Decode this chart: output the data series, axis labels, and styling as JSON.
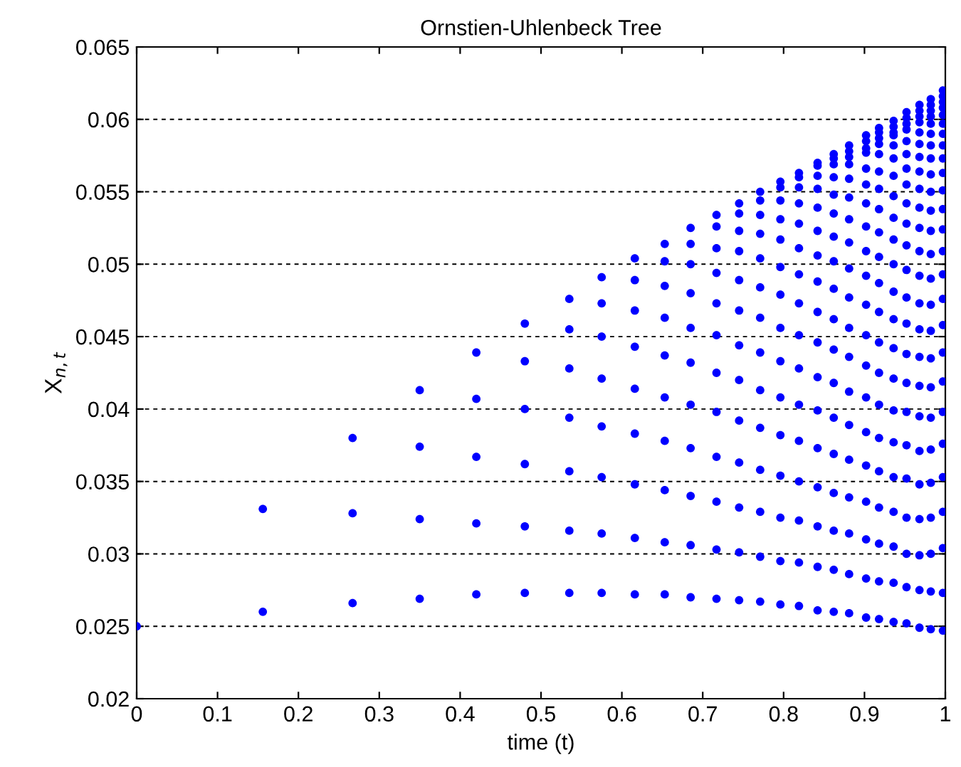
{
  "chart_data": {
    "type": "scatter",
    "title": "Ornstien-Uhlenbeck Tree",
    "xlabel": "time (t)",
    "ylabel": "X$_{n,t}$",
    "xlim": [
      0,
      1
    ],
    "ylim": [
      0.02,
      0.065
    ],
    "xticks": [
      0,
      0.1,
      0.2,
      0.3,
      0.4,
      0.5,
      0.6,
      0.7,
      0.8,
      0.9,
      1
    ],
    "yticks": [
      0.02,
      0.025,
      0.03,
      0.035,
      0.04,
      0.045,
      0.05,
      0.055,
      0.06,
      0.065
    ],
    "grid": "y",
    "marker": "circle",
    "series": [
      {
        "color": "#0000ff",
        "x": [
          0
        ],
        "values": [
          0.025
        ]
      },
      {
        "color": "#0000ff",
        "x": [
          0.156,
          0.156
        ],
        "values": [
          0.0331,
          0.026
        ]
      },
      {
        "color": "#0000ff",
        "x": [
          0.267,
          0.267,
          0.267
        ],
        "values": [
          0.038,
          0.0328,
          0.0266
        ]
      },
      {
        "color": "#0000ff",
        "x": [
          0.35,
          0.35,
          0.35,
          0.35
        ],
        "values": [
          0.0413,
          0.0374,
          0.0324,
          0.0269
        ]
      },
      {
        "color": "#0000ff",
        "x": [
          0.42,
          0.42,
          0.42,
          0.42,
          0.42
        ],
        "values": [
          0.0439,
          0.0407,
          0.0367,
          0.0321,
          0.0272
        ]
      },
      {
        "color": "#0000ff",
        "x": [
          0.48,
          0.48,
          0.48,
          0.48,
          0.48,
          0.48
        ],
        "values": [
          0.0459,
          0.0433,
          0.04,
          0.0362,
          0.0319,
          0.0273
        ]
      },
      {
        "color": "#0000ff",
        "x": [
          0.535,
          0.535,
          0.535,
          0.535,
          0.535,
          0.535,
          0.535
        ],
        "values": [
          0.0476,
          0.0455,
          0.0428,
          0.0394,
          0.0357,
          0.0316,
          0.0273
        ]
      },
      {
        "color": "#0000ff",
        "x": [
          0.575,
          0.575,
          0.575,
          0.575,
          0.575,
          0.575,
          0.575,
          0.575
        ],
        "values": [
          0.0491,
          0.0473,
          0.045,
          0.0421,
          0.0388,
          0.0353,
          0.0314,
          0.0273
        ]
      },
      {
        "color": "#0000ff",
        "x": [
          0.616,
          0.616,
          0.616,
          0.616,
          0.616,
          0.616,
          0.616,
          0.616,
          0.616
        ],
        "values": [
          0.0504,
          0.0489,
          0.0468,
          0.0443,
          0.0414,
          0.0383,
          0.0348,
          0.0311,
          0.0272
        ]
      },
      {
        "color": "#0000ff",
        "x": [
          0.653,
          0.653,
          0.653,
          0.653,
          0.653,
          0.653,
          0.653,
          0.653,
          0.653,
          0.653
        ],
        "values": [
          0.0514,
          0.0502,
          0.0485,
          0.0463,
          0.0437,
          0.0408,
          0.0378,
          0.0344,
          0.0308,
          0.0272
        ]
      },
      {
        "color": "#0000ff",
        "x": [
          0.685,
          0.685,
          0.685,
          0.685,
          0.685,
          0.685,
          0.685,
          0.685,
          0.685,
          0.685,
          0.685
        ],
        "values": [
          0.0525,
          0.0514,
          0.05,
          0.048,
          0.0456,
          0.0432,
          0.0403,
          0.0373,
          0.034,
          0.0306,
          0.027
        ]
      },
      {
        "color": "#0000ff",
        "x": [
          0.717,
          0.717,
          0.717,
          0.717,
          0.717,
          0.717,
          0.717,
          0.717,
          0.717,
          0.717,
          0.717,
          0.717
        ],
        "values": [
          0.0534,
          0.0526,
          0.0511,
          0.0494,
          0.0473,
          0.0451,
          0.0425,
          0.0398,
          0.0367,
          0.0336,
          0.0303,
          0.0269
        ]
      },
      {
        "color": "#0000ff",
        "x": [
          0.745,
          0.745,
          0.745,
          0.745,
          0.745,
          0.745,
          0.745,
          0.745,
          0.745,
          0.745,
          0.745,
          0.745,
          0.745
        ],
        "values": [
          0.0542,
          0.0535,
          0.0523,
          0.0509,
          0.0489,
          0.0468,
          0.0444,
          0.042,
          0.0392,
          0.0363,
          0.0332,
          0.0301,
          0.0268
        ]
      },
      {
        "color": "#0000ff",
        "x": [
          0.771,
          0.771,
          0.771,
          0.771,
          0.771,
          0.771,
          0.771,
          0.771,
          0.771,
          0.771,
          0.771,
          0.771,
          0.771,
          0.771
        ],
        "values": [
          0.055,
          0.0544,
          0.0534,
          0.0521,
          0.0504,
          0.0484,
          0.0463,
          0.0439,
          0.0413,
          0.0387,
          0.0358,
          0.0329,
          0.0298,
          0.0267
        ]
      },
      {
        "color": "#0000ff",
        "x": [
          0.796,
          0.796,
          0.796,
          0.796,
          0.796,
          0.796,
          0.796,
          0.796,
          0.796,
          0.796,
          0.796,
          0.796,
          0.796,
          0.796,
          0.796
        ],
        "values": [
          0.0557,
          0.0553,
          0.0544,
          0.0531,
          0.0517,
          0.0498,
          0.0479,
          0.0456,
          0.0433,
          0.0408,
          0.0382,
          0.0354,
          0.0325,
          0.0295,
          0.0265
        ]
      },
      {
        "color": "#0000ff",
        "x": [
          0.819,
          0.819,
          0.819,
          0.819,
          0.819,
          0.819,
          0.819,
          0.819,
          0.819,
          0.819,
          0.819,
          0.819,
          0.819,
          0.819,
          0.819,
          0.819
        ],
        "values": [
          0.0563,
          0.056,
          0.0553,
          0.0542,
          0.0528,
          0.0511,
          0.0493,
          0.0473,
          0.0451,
          0.0428,
          0.0403,
          0.0378,
          0.035,
          0.0323,
          0.0294,
          0.0264
        ]
      },
      {
        "color": "#0000ff",
        "x": [
          0.842,
          0.842,
          0.842,
          0.842,
          0.842,
          0.842,
          0.842,
          0.842,
          0.842,
          0.842,
          0.842,
          0.842,
          0.842,
          0.842,
          0.842,
          0.842,
          0.842
        ],
        "values": [
          0.057,
          0.0568,
          0.0561,
          0.0552,
          0.0539,
          0.0523,
          0.0506,
          0.0488,
          0.0467,
          0.0446,
          0.0422,
          0.0399,
          0.0373,
          0.0346,
          0.0319,
          0.0291,
          0.0261
        ]
      },
      {
        "color": "#0000ff",
        "x": [
          0.862,
          0.862,
          0.862,
          0.862,
          0.862,
          0.862,
          0.862,
          0.862,
          0.862,
          0.862,
          0.862,
          0.862,
          0.862,
          0.862,
          0.862,
          0.862,
          0.862,
          0.862
        ],
        "values": [
          0.0576,
          0.0573,
          0.0569,
          0.056,
          0.0548,
          0.0535,
          0.0519,
          0.0502,
          0.0483,
          0.0462,
          0.0441,
          0.0418,
          0.0394,
          0.0369,
          0.0342,
          0.0316,
          0.0289,
          0.026
        ]
      },
      {
        "color": "#0000ff",
        "x": [
          0.881,
          0.881,
          0.881,
          0.881,
          0.881,
          0.881,
          0.881,
          0.881,
          0.881,
          0.881,
          0.881,
          0.881,
          0.881,
          0.881,
          0.881,
          0.881,
          0.881,
          0.881,
          0.881
        ],
        "values": [
          0.0582,
          0.0578,
          0.0574,
          0.0569,
          0.0559,
          0.0546,
          0.0531,
          0.0515,
          0.0497,
          0.0477,
          0.0456,
          0.0436,
          0.0412,
          0.0389,
          0.0365,
          0.0339,
          0.0314,
          0.0286,
          0.0259
        ]
      },
      {
        "color": "#0000ff",
        "x": [
          0.902,
          0.902,
          0.902,
          0.902,
          0.902,
          0.902,
          0.902,
          0.902,
          0.902,
          0.902,
          0.902,
          0.902,
          0.902,
          0.902,
          0.902,
          0.902,
          0.902,
          0.902,
          0.902,
          0.902
        ],
        "values": [
          0.0589,
          0.0585,
          0.058,
          0.0577,
          0.0566,
          0.0555,
          0.0542,
          0.0526,
          0.0509,
          0.0492,
          0.0472,
          0.0451,
          0.043,
          0.0408,
          0.0384,
          0.0361,
          0.0336,
          0.031,
          0.0283,
          0.0256
        ]
      },
      {
        "color": "#0000ff",
        "x": [
          0.918,
          0.918,
          0.918,
          0.918,
          0.918,
          0.918,
          0.918,
          0.918,
          0.918,
          0.918,
          0.918,
          0.918,
          0.918,
          0.918,
          0.918,
          0.918,
          0.918,
          0.918,
          0.918,
          0.918,
          0.918
        ],
        "values": [
          0.0594,
          0.0591,
          0.0587,
          0.0583,
          0.0576,
          0.0564,
          0.0552,
          0.0538,
          0.0522,
          0.0505,
          0.0487,
          0.0467,
          0.0446,
          0.0425,
          0.0403,
          0.038,
          0.0357,
          0.0332,
          0.0307,
          0.0281,
          0.0255
        ]
      },
      {
        "color": "#0000ff",
        "x": [
          0.936,
          0.936,
          0.936,
          0.936,
          0.936,
          0.936,
          0.936,
          0.936,
          0.936,
          0.936,
          0.936,
          0.936,
          0.936,
          0.936,
          0.936,
          0.936,
          0.936,
          0.936,
          0.936,
          0.936,
          0.936,
          0.936
        ],
        "values": [
          0.0599,
          0.0595,
          0.0591,
          0.0589,
          0.0582,
          0.0573,
          0.0561,
          0.0547,
          0.0532,
          0.0517,
          0.05,
          0.0481,
          0.0462,
          0.0442,
          0.0421,
          0.0399,
          0.0377,
          0.0353,
          0.0329,
          0.0305,
          0.028,
          0.0253
        ]
      },
      {
        "color": "#0000ff",
        "x": [
          0.952,
          0.952,
          0.952,
          0.952,
          0.952,
          0.952,
          0.952,
          0.952,
          0.952,
          0.952,
          0.952,
          0.952,
          0.952,
          0.952,
          0.952,
          0.952,
          0.952,
          0.952,
          0.952,
          0.952,
          0.952,
          0.952,
          0.952
        ],
        "values": [
          0.0605,
          0.0601,
          0.0597,
          0.0593,
          0.0585,
          0.0576,
          0.0566,
          0.0555,
          0.0542,
          0.0528,
          0.0513,
          0.0496,
          0.0477,
          0.0459,
          0.0438,
          0.0418,
          0.0398,
          0.0375,
          0.0352,
          0.0325,
          0.03,
          0.0277,
          0.0252
        ]
      },
      {
        "color": "#0000ff",
        "x": [
          0.968,
          0.968,
          0.968,
          0.968,
          0.968,
          0.968,
          0.968,
          0.968,
          0.968,
          0.968,
          0.968,
          0.968,
          0.968,
          0.968,
          0.968,
          0.968,
          0.968,
          0.968,
          0.968,
          0.968,
          0.968,
          0.968,
          0.968,
          0.968
        ],
        "values": [
          0.061,
          0.0606,
          0.0602,
          0.0598,
          0.0591,
          0.0583,
          0.0574,
          0.0564,
          0.0552,
          0.0539,
          0.0525,
          0.0509,
          0.0492,
          0.0473,
          0.0455,
          0.0436,
          0.0416,
          0.0395,
          0.0371,
          0.0348,
          0.0324,
          0.0299,
          0.0275,
          0.0249
        ]
      },
      {
        "color": "#0000ff",
        "x": [
          0.982,
          0.982,
          0.982,
          0.982,
          0.982,
          0.982,
          0.982,
          0.982,
          0.982,
          0.982,
          0.982,
          0.982,
          0.982,
          0.982,
          0.982,
          0.982,
          0.982,
          0.982,
          0.982,
          0.982,
          0.982,
          0.982,
          0.982,
          0.982,
          0.982
        ],
        "values": [
          0.0614,
          0.061,
          0.0606,
          0.0602,
          0.0597,
          0.059,
          0.0582,
          0.0573,
          0.0562,
          0.055,
          0.0537,
          0.0523,
          0.0507,
          0.049,
          0.0472,
          0.0454,
          0.0435,
          0.0415,
          0.0394,
          0.0372,
          0.0349,
          0.0325,
          0.03,
          0.0274,
          0.0248
        ]
      },
      {
        "color": "#0000ff",
        "x": [
          0.997,
          0.997,
          0.997,
          0.997,
          0.997,
          0.997,
          0.997,
          0.997,
          0.997,
          0.997,
          0.997,
          0.997,
          0.997,
          0.997,
          0.997,
          0.997,
          0.997,
          0.997,
          0.997,
          0.997,
          0.997,
          0.997,
          0.997,
          0.997,
          0.997,
          0.997
        ],
        "values": [
          0.062,
          0.0616,
          0.0612,
          0.0608,
          0.0603,
          0.0597,
          0.059,
          0.0582,
          0.0573,
          0.0563,
          0.0551,
          0.0538,
          0.0524,
          0.0509,
          0.0493,
          0.0476,
          0.0458,
          0.0439,
          0.0419,
          0.0398,
          0.0376,
          0.0353,
          0.0329,
          0.0304,
          0.0273,
          0.0247
        ]
      }
    ]
  }
}
